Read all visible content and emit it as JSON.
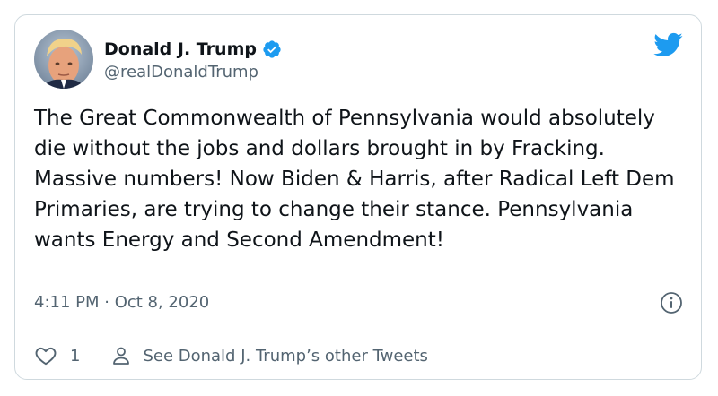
{
  "author": {
    "display_name": "Donald J. Trump",
    "handle": "@realDonaldTrump",
    "verified": true
  },
  "tweet": {
    "text": "The Great Commonwealth of Pennsylvania would absolutely die without the jobs and dollars brought in by Fracking. Massive numbers! Now Biden & Harris, after Radical Left Dem Primaries, are trying to change their stance. Pennsylvania wants Energy and Second Amendment!",
    "timestamp": "4:11 PM · Oct 8, 2020"
  },
  "actions": {
    "like_count": "1",
    "others_label": "See Donald J. Trump’s other Tweets"
  },
  "icons": {
    "brand": "twitter-bird-icon",
    "verified": "verified-badge-icon",
    "info": "info-icon",
    "like": "heart-icon",
    "profile": "person-icon"
  },
  "colors": {
    "brand_blue": "#1d9bf0",
    "text_primary": "#0f1419",
    "text_secondary": "#536471",
    "border": "#cfd9de"
  }
}
